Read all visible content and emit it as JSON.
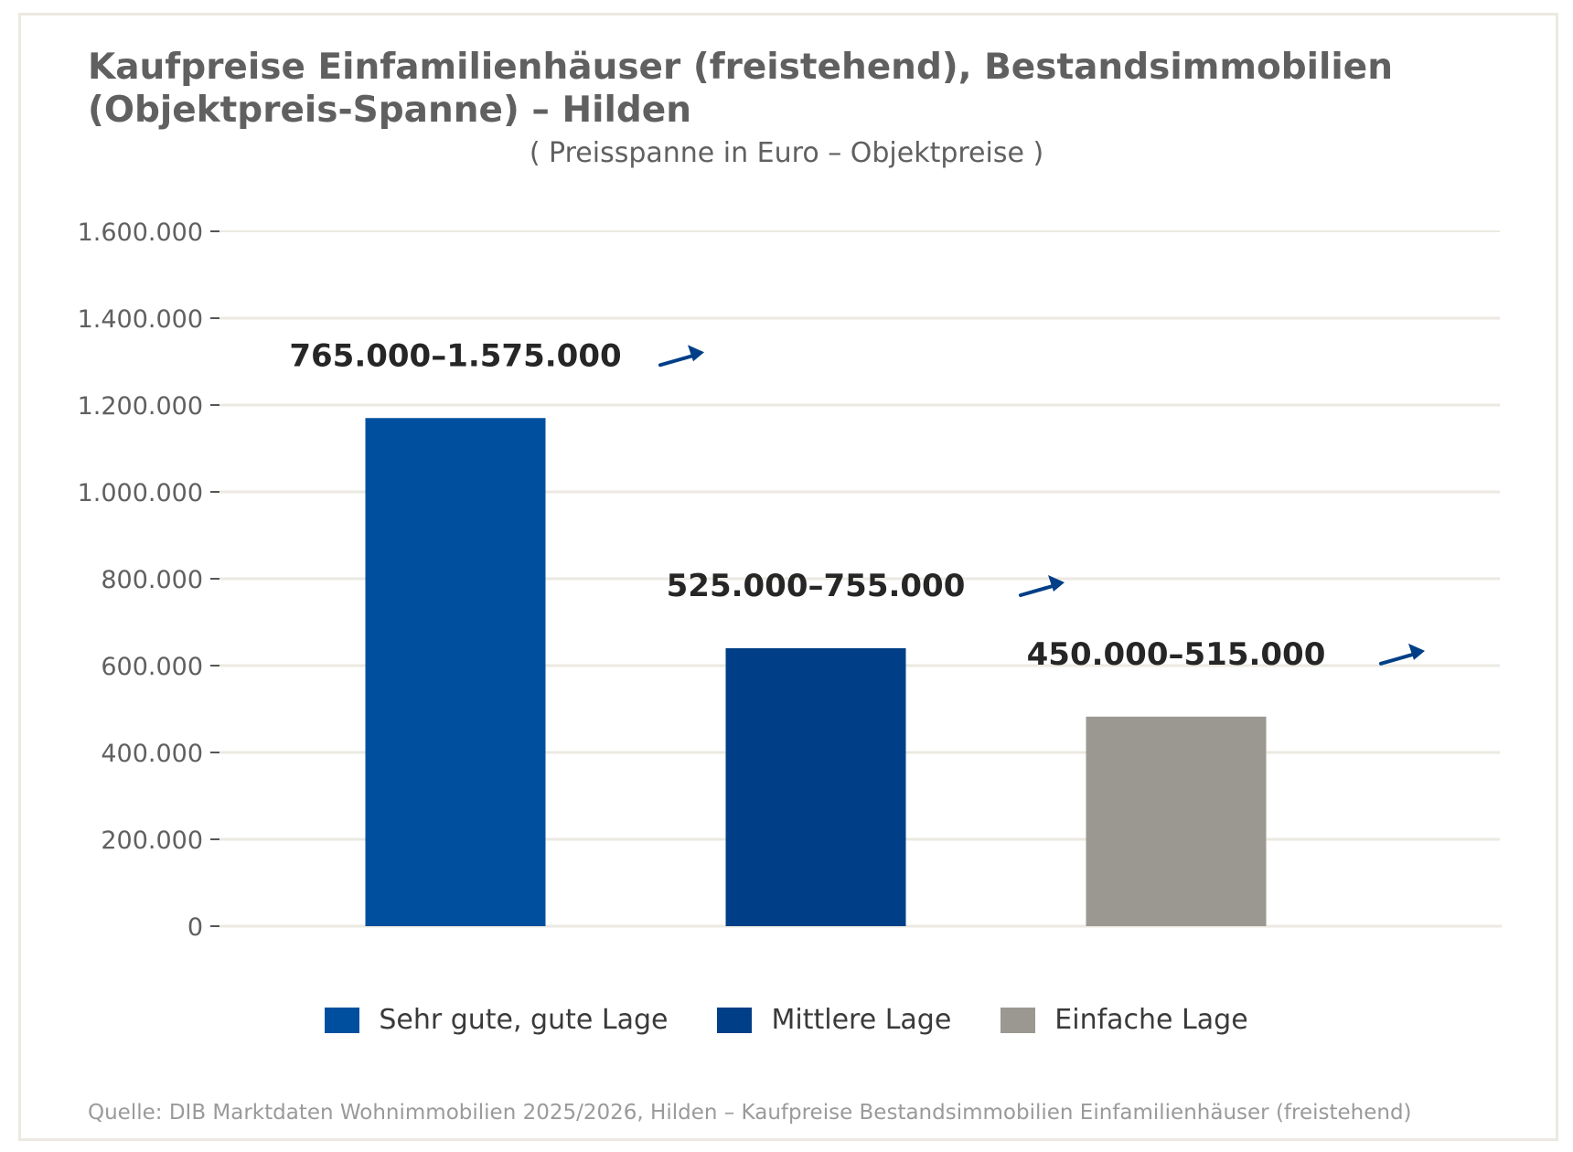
{
  "chart_data": {
    "type": "bar",
    "title": "Kaufpreise Einfamilienhäuser (freistehend), Bestandsimmobilien (Objektpreis-Spanne) – Hilden",
    "subtitle": "( Preisspanne in Euro – Objektpreise )",
    "categories": [
      "Sehr gute, gute Lage",
      "Mittlere Lage",
      "Einfache Lage"
    ],
    "values": [
      1170000,
      640000,
      482500
    ],
    "range_labels": [
      "765.000–1.575.000",
      "525.000–755.000",
      "450.000–515.000"
    ],
    "colors": [
      "#004f9f",
      "#003f87",
      "#9b9891"
    ],
    "arrow_color": "#003f87",
    "ylim": [
      0,
      1600000
    ],
    "yticks": [
      0,
      200000,
      400000,
      600000,
      800000,
      1000000,
      1200000,
      1400000,
      1600000
    ],
    "ytick_labels": [
      "0",
      "200.000",
      "400.000",
      "600.000",
      "800.000",
      "1.000.000",
      "1.200.000",
      "1.400.000",
      "1.600.000"
    ],
    "xlabel": "",
    "ylabel": "",
    "grid": true,
    "legend": {
      "position": "bottom",
      "entries": [
        "Sehr gute, gute Lage",
        "Mittlere Lage",
        "Einfache Lage"
      ]
    },
    "source": "Quelle: DIB Marktdaten Wohnimmobilien 2025/2026, Hilden – Kaufpreise Bestandsimmobilien Einfamilienhäuser (freistehend)"
  }
}
